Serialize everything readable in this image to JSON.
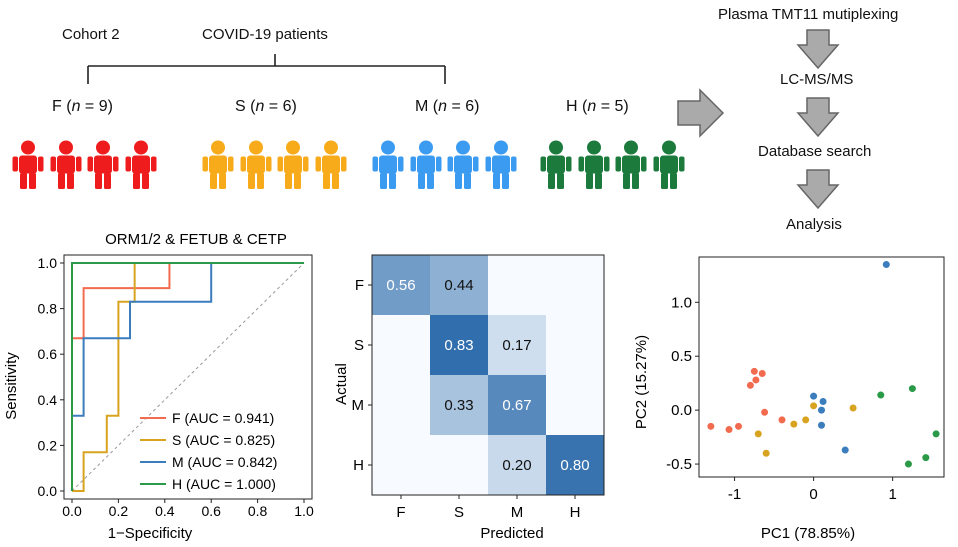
{
  "cohort": {
    "label": "Cohort 2",
    "patients_label": "COVID-19 patients",
    "groups": [
      {
        "key": "F",
        "n": "9",
        "count": 4,
        "color": "#ee1c1c"
      },
      {
        "key": "S",
        "n": "6",
        "count": 4,
        "color": "#f7ab1a"
      },
      {
        "key": "M",
        "n": "6",
        "count": 4,
        "color": "#3a9bf0"
      },
      {
        "key": "H",
        "n": "5",
        "count": 4,
        "color": "#1b7a3c"
      }
    ]
  },
  "workflow": {
    "steps": [
      "Plasma TMT11 mutiplexing",
      "LC-MS/MS",
      "Database search",
      "Analysis"
    ]
  },
  "chart_data": [
    {
      "type": "line",
      "title": "ORM1/2 & FETUB & CETP",
      "xlabel": "1−Specificity",
      "ylabel": "Sensitivity",
      "xlim": [
        0,
        1
      ],
      "ylim": [
        0,
        1
      ],
      "xticks": [
        "0.0",
        "0.2",
        "0.4",
        "0.6",
        "0.8",
        "1.0"
      ],
      "yticks": [
        "0.0",
        "0.2",
        "0.4",
        "0.6",
        "0.8",
        "1.0"
      ],
      "diagonal": true,
      "legend_position": "bottom-right",
      "series": [
        {
          "name": "F (AUC = 0.941)",
          "color": "#f26b4f",
          "x": [
            0,
            0,
            0.05,
            0.05,
            0.42,
            0.42,
            1
          ],
          "y": [
            0,
            0.67,
            0.67,
            0.89,
            0.89,
            1,
            1
          ]
        },
        {
          "name": "S (AUC = 0.825)",
          "color": "#d8a420",
          "x": [
            0,
            0.05,
            0.05,
            0.15,
            0.15,
            0.2,
            0.2,
            0.25,
            0.25,
            0.27,
            0.27,
            1
          ],
          "y": [
            0,
            0,
            0.17,
            0.17,
            0.33,
            0.33,
            0.83,
            0.83,
            0.83,
            0.83,
            1,
            1
          ]
        },
        {
          "name": "M (AUC = 0.842)",
          "color": "#3b7dbd",
          "x": [
            0,
            0,
            0.05,
            0.05,
            0.25,
            0.25,
            0.6,
            0.6,
            1
          ],
          "y": [
            0,
            0.33,
            0.33,
            0.67,
            0.67,
            0.83,
            0.83,
            1,
            1
          ]
        },
        {
          "name": "H (AUC = 1.000)",
          "color": "#2a9a48",
          "x": [
            0,
            0,
            1
          ],
          "y": [
            0,
            1,
            1
          ]
        }
      ]
    },
    {
      "type": "heatmap",
      "xlabel": "Predicted",
      "ylabel": "Actual",
      "rows": [
        "F",
        "S",
        "M",
        "H"
      ],
      "cols": [
        "F",
        "S",
        "M",
        "H"
      ],
      "values": [
        [
          0.56,
          0.44,
          0,
          0
        ],
        [
          0,
          0.83,
          0.17,
          0
        ],
        [
          0,
          0.33,
          0.67,
          0
        ],
        [
          0,
          0,
          0.2,
          0.8
        ]
      ],
      "labels": [
        [
          "0.56",
          "0.44",
          "",
          ""
        ],
        [
          "",
          "0.83",
          "0.17",
          ""
        ],
        [
          "",
          "0.33",
          "0.67",
          ""
        ],
        [
          "",
          "",
          "0.20",
          "0.80"
        ]
      ]
    },
    {
      "type": "scatter",
      "xlabel": "PC1 (78.85%)",
      "ylabel": "PC2 (15.27%)",
      "xlim": [
        -1.45,
        1.65
      ],
      "ylim": [
        -0.62,
        1.42
      ],
      "xticks": [
        -1,
        0,
        1
      ],
      "xtick_labels": [
        "-1",
        "0",
        "1"
      ],
      "yticks": [
        -0.5,
        0,
        0.5,
        1.0
      ],
      "ytick_labels": [
        "-0.5",
        "0.0",
        "0.5",
        "1.0"
      ],
      "series": [
        {
          "color": "#f26b4f",
          "points": [
            [
              -1.3,
              -0.15
            ],
            [
              -1.07,
              -0.18
            ],
            [
              -0.95,
              -0.15
            ],
            [
              -0.8,
              0.23
            ],
            [
              -0.75,
              0.36
            ],
            [
              -0.73,
              0.28
            ],
            [
              -0.65,
              0.34
            ],
            [
              -0.62,
              -0.02
            ],
            [
              -0.4,
              -0.09
            ]
          ]
        },
        {
          "color": "#d8a420",
          "points": [
            [
              -0.7,
              -0.22
            ],
            [
              -0.6,
              -0.4
            ],
            [
              -0.25,
              -0.13
            ],
            [
              -0.1,
              -0.09
            ],
            [
              0,
              0.04
            ],
            [
              0.5,
              0.02
            ]
          ]
        },
        {
          "color": "#3b7dbd",
          "points": [
            [
              0,
              0.13
            ],
            [
              0.12,
              0.08
            ],
            [
              0.1,
              0.0
            ],
            [
              0.1,
              -0.14
            ],
            [
              0.4,
              -0.37
            ],
            [
              0.92,
              1.35
            ]
          ]
        },
        {
          "color": "#2a9a48",
          "points": [
            [
              0.85,
              0.14
            ],
            [
              1.25,
              0.2
            ],
            [
              1.2,
              -0.5
            ],
            [
              1.42,
              -0.44
            ],
            [
              1.55,
              -0.22
            ]
          ]
        }
      ]
    }
  ]
}
